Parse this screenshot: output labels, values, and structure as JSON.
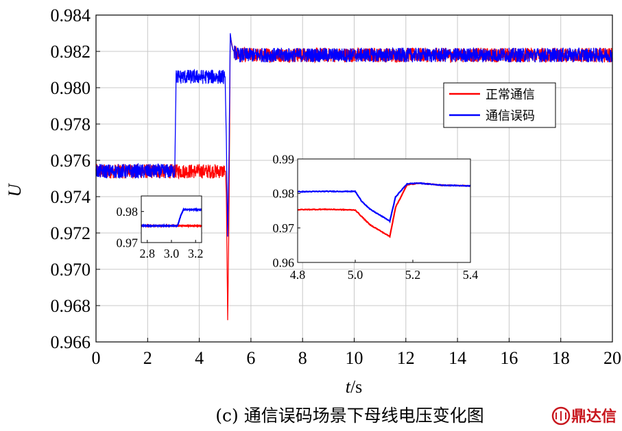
{
  "chart_data": [
    {
      "type": "line",
      "ylabel": "U",
      "xlabel_prefix": "t",
      "xlabel_unit": "/s",
      "xlim": [
        0,
        20
      ],
      "ylim": [
        0.966,
        0.984
      ],
      "xticks": [
        0,
        2,
        4,
        6,
        8,
        10,
        12,
        14,
        16,
        18,
        20
      ],
      "yticks": [
        "0.966",
        "0.968",
        "0.970",
        "0.972",
        "0.974",
        "0.976",
        "0.978",
        "0.980",
        "0.982",
        "0.984"
      ],
      "grid": true,
      "legend_position": "upper-right",
      "series": [
        {
          "name": "正常通信",
          "color": "#ff0000",
          "x": [
            0,
            3.0,
            5.02,
            5.05,
            5.1,
            5.15,
            5.2,
            5.25,
            5.3,
            5.4,
            5.5,
            20
          ],
          "y": [
            0.9754,
            0.9754,
            0.9754,
            0.974,
            0.9672,
            0.973,
            0.9829,
            0.9825,
            0.9821,
            0.9819,
            0.9818,
            0.9818
          ],
          "noise": 0.0004
        },
        {
          "name": "通信误码",
          "color": "#0000ff",
          "x": [
            0,
            3.05,
            3.1,
            5.0,
            5.05,
            5.1,
            5.15,
            5.2,
            5.25,
            5.3,
            5.4,
            5.5,
            20
          ],
          "y": [
            0.9754,
            0.9754,
            0.9806,
            0.9806,
            0.977,
            0.9718,
            0.976,
            0.983,
            0.9824,
            0.9821,
            0.9819,
            0.9818,
            0.9818
          ],
          "noise": 0.0004
        }
      ]
    },
    {
      "type": "line",
      "name": "inset-1",
      "xlim": [
        2.75,
        3.25
      ],
      "ylim": [
        0.97,
        0.985
      ],
      "xticks": [
        "2.8",
        "3.0",
        "3.2"
      ],
      "yticks": [
        "0.97",
        "0.98"
      ],
      "series": [
        {
          "color": "#ff0000",
          "x": [
            2.75,
            3.25
          ],
          "y": [
            0.9754,
            0.9754
          ]
        },
        {
          "color": "#0000ff",
          "x": [
            2.75,
            3.05,
            3.08,
            3.1,
            3.25
          ],
          "y": [
            0.9754,
            0.9754,
            0.979,
            0.9806,
            0.9806
          ]
        }
      ]
    },
    {
      "type": "line",
      "name": "inset-2",
      "xlim": [
        4.8,
        5.4
      ],
      "ylim": [
        0.96,
        0.99
      ],
      "xticks": [
        "4.8",
        "5.0",
        "5.2",
        "5.4"
      ],
      "yticks": [
        "0.96",
        "0.97",
        "0.98",
        "0.99"
      ],
      "series": [
        {
          "color": "#ff0000",
          "x": [
            4.8,
            4.9,
            5.0,
            5.02,
            5.05,
            5.1,
            5.12,
            5.14,
            5.18,
            5.22,
            5.3,
            5.4
          ],
          "y": [
            0.9753,
            0.9754,
            0.9752,
            0.9735,
            0.971,
            0.9685,
            0.9675,
            0.976,
            0.9825,
            0.983,
            0.9824,
            0.9822
          ]
        },
        {
          "color": "#0000ff",
          "x": [
            4.8,
            4.9,
            5.0,
            5.02,
            5.05,
            5.1,
            5.12,
            5.14,
            5.18,
            5.22,
            5.3,
            5.4
          ],
          "y": [
            0.9805,
            0.9806,
            0.9806,
            0.978,
            0.9755,
            0.973,
            0.972,
            0.979,
            0.9828,
            0.983,
            0.9824,
            0.9822
          ]
        }
      ]
    }
  ],
  "caption": "(c) 通信误码场景下母线电压变化图",
  "watermark_text": "鼎达信"
}
